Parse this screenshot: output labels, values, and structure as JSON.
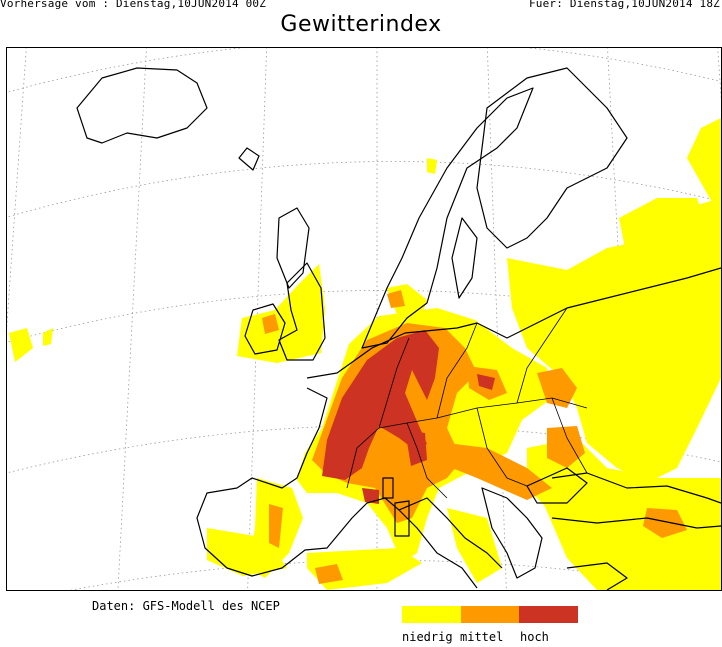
{
  "header": {
    "forecast_from": "Vorhersage vom : Dienstag,10JUN2014 00Z",
    "valid_for": "Fuer: Dienstag,10JUN2014 18Z"
  },
  "title": "Gewitterindex",
  "source": "Daten: GFS-Modell des NCEP",
  "legend": [
    {
      "label": "niedrig",
      "color": "#ffff00"
    },
    {
      "label": "mittel",
      "color": "#ff9900"
    },
    {
      "label": "hoch",
      "color": "#cc3322"
    }
  ],
  "colors": {
    "coastline": "#000000",
    "graticule": "#999999",
    "background": "#ffffff"
  }
}
